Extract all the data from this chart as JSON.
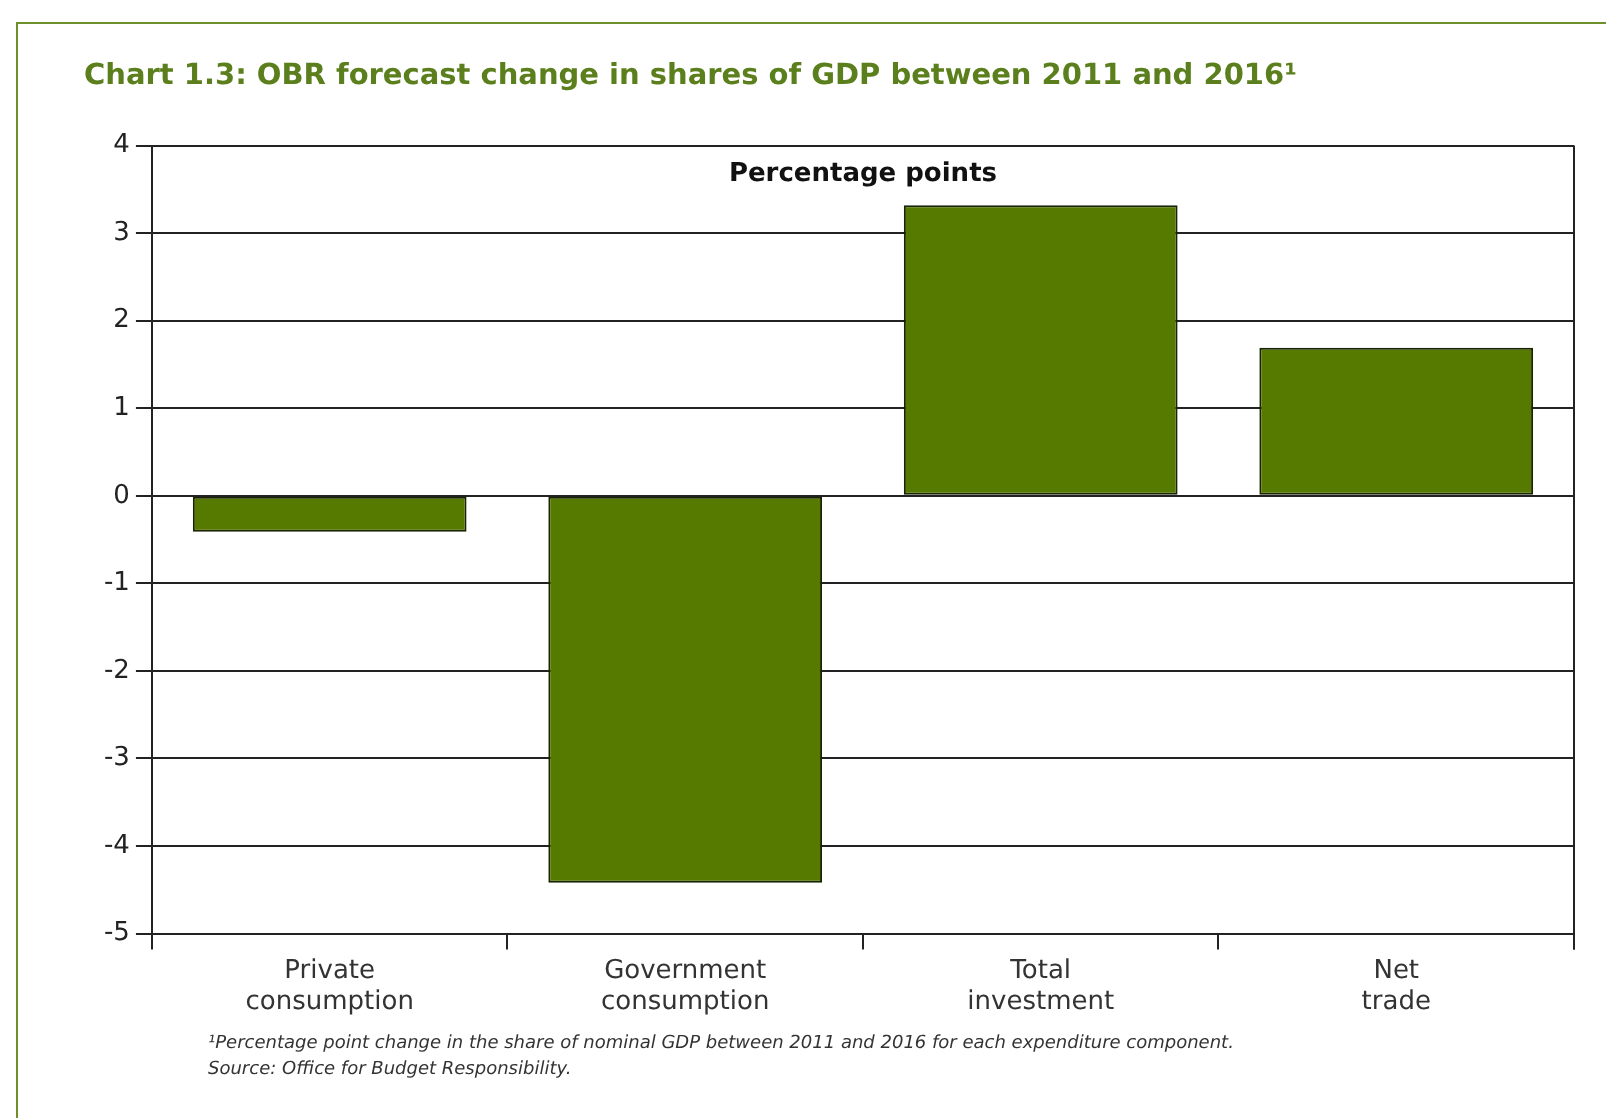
{
  "chart_data": {
    "type": "bar",
    "title": "Chart 1.3: OBR forecast change in shares of GDP between 2011 and 2016¹",
    "subtitle": "Percentage points",
    "categories": [
      "Private consumption",
      "Government consumption",
      "Total investment",
      "Net trade"
    ],
    "values": [
      -0.41,
      -4.42,
      3.32,
      1.69
    ],
    "color": "#567a00",
    "ylim": [
      -5,
      4
    ],
    "yticks": [
      -5,
      -4,
      -3,
      -2,
      -1,
      0,
      1,
      2,
      3,
      4
    ],
    "grid": "y",
    "legend": false,
    "annotations": [
      "¹Percentage point change in the share of nominal GDP between 2011 and 2016 for each expenditure component.",
      "Source: Office for Budget Responsibility."
    ]
  }
}
